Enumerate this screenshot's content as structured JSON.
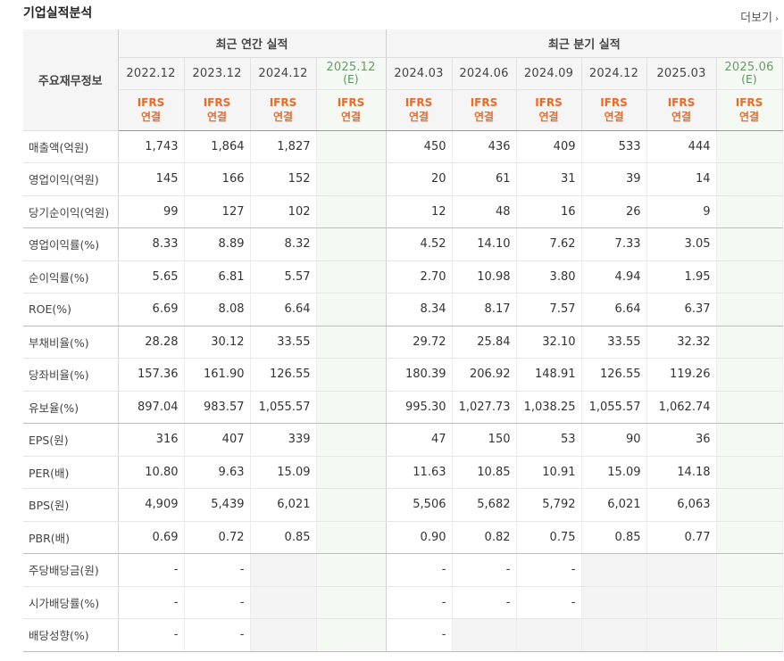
{
  "section": {
    "title": "기업실적분석",
    "more_label": "더보기"
  },
  "table": {
    "corner_label": "주요재무정보",
    "groups": {
      "annual": "최근 연간 실적",
      "quarterly": "최근 분기 실적"
    },
    "periods": [
      "2022.12",
      "2023.12",
      "2024.12",
      "2025.12",
      "2024.03",
      "2024.06",
      "2024.09",
      "2024.12",
      "2025.03",
      "2025.06"
    ],
    "estimate_mark": "(E)",
    "acct_top": "IFRS",
    "acct_bottom": "연결",
    "rows": [
      {
        "label": "매출액(억원)",
        "values": [
          "1,743",
          "1,864",
          "1,827",
          "",
          "450",
          "436",
          "409",
          "533",
          "444",
          ""
        ]
      },
      {
        "label": "영업이익(억원)",
        "values": [
          "145",
          "166",
          "152",
          "",
          "20",
          "61",
          "31",
          "39",
          "14",
          ""
        ]
      },
      {
        "label": "당기순이익(억원)",
        "values": [
          "99",
          "127",
          "102",
          "",
          "12",
          "48",
          "16",
          "26",
          "9",
          ""
        ]
      },
      {
        "label": "영업이익률(%)",
        "values": [
          "8.33",
          "8.89",
          "8.32",
          "",
          "4.52",
          "14.10",
          "7.62",
          "7.33",
          "3.05",
          ""
        ]
      },
      {
        "label": "순이익률(%)",
        "values": [
          "5.65",
          "6.81",
          "5.57",
          "",
          "2.70",
          "10.98",
          "3.80",
          "4.94",
          "1.95",
          ""
        ]
      },
      {
        "label": "ROE(%)",
        "values": [
          "6.69",
          "8.08",
          "6.64",
          "",
          "8.34",
          "8.17",
          "7.57",
          "6.64",
          "6.37",
          ""
        ]
      },
      {
        "label": "부채비율(%)",
        "values": [
          "28.28",
          "30.12",
          "33.55",
          "",
          "29.72",
          "25.84",
          "32.10",
          "33.55",
          "32.32",
          ""
        ]
      },
      {
        "label": "당좌비율(%)",
        "values": [
          "157.36",
          "161.90",
          "126.55",
          "",
          "180.39",
          "206.92",
          "148.91",
          "126.55",
          "119.26",
          ""
        ]
      },
      {
        "label": "유보율(%)",
        "values": [
          "897.04",
          "983.57",
          "1,055.57",
          "",
          "995.30",
          "1,027.73",
          "1,038.25",
          "1,055.57",
          "1,062.74",
          ""
        ]
      },
      {
        "label": "EPS(원)",
        "values": [
          "316",
          "407",
          "339",
          "",
          "47",
          "150",
          "53",
          "90",
          "36",
          ""
        ]
      },
      {
        "label": "PER(배)",
        "values": [
          "10.80",
          "9.63",
          "15.09",
          "",
          "11.63",
          "10.85",
          "10.91",
          "15.09",
          "14.18",
          ""
        ]
      },
      {
        "label": "BPS(원)",
        "values": [
          "4,909",
          "5,439",
          "6,021",
          "",
          "5,506",
          "5,682",
          "5,792",
          "6,021",
          "6,063",
          ""
        ]
      },
      {
        "label": "PBR(배)",
        "values": [
          "0.69",
          "0.72",
          "0.85",
          "",
          "0.90",
          "0.82",
          "0.75",
          "0.85",
          "0.77",
          ""
        ]
      },
      {
        "label": "주당배당금(원)",
        "values": [
          "-",
          "-",
          "",
          "",
          "-",
          "-",
          "-",
          "",
          "",
          ""
        ]
      },
      {
        "label": "시가배당률(%)",
        "values": [
          "-",
          "-",
          "",
          "",
          "-",
          "-",
          "-",
          "",
          "",
          ""
        ]
      },
      {
        "label": "배당성향(%)",
        "values": [
          "-",
          "-",
          "",
          "",
          "-",
          "",
          "",
          "",
          "",
          ""
        ]
      }
    ]
  }
}
